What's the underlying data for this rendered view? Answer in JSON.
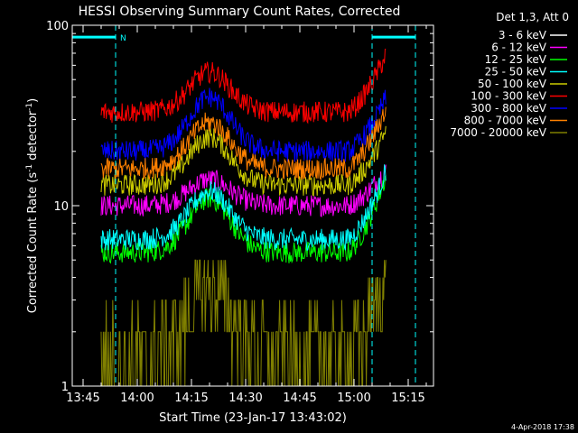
{
  "chart_data": {
    "type": "line",
    "title": "HESSI Observing Summary Count Rates, Corrected",
    "xlabel": "Start Time (23-Jan-17 13:43:02)",
    "ylabel_main": "Corrected Count Rate (s",
    "ylabel_sup1": "-1",
    "ylabel_mid": " detector",
    "ylabel_sup2": "-1",
    "ylabel_end": ")",
    "timestamp": "4-Apr-2018 17:38",
    "y_scale": "log",
    "ylim": [
      1,
      100
    ],
    "xlim": [
      "13:42",
      "15:22"
    ],
    "xticks": [
      "13:45",
      "14:00",
      "14:15",
      "14:30",
      "14:45",
      "15:00",
      "15:15"
    ],
    "yticks": [
      "1",
      "10",
      "100"
    ],
    "legend_header": "Det 1,3, Att 0",
    "legend_position": "outside-right",
    "night_marker_label": "N",
    "night_periods": [
      [
        "13:42",
        "13:54"
      ],
      [
        "15:05",
        "15:17"
      ]
    ],
    "data_start": "13:50",
    "data_end": "15:09",
    "series": [
      {
        "name": "3 - 6 keV",
        "color": "#000000",
        "baseline": 11,
        "peak": 18,
        "end": 20
      },
      {
        "name": "6 - 12 keV",
        "color": "#ff00ff",
        "baseline": 10,
        "peak": 14,
        "end": 16
      },
      {
        "name": "12 - 25 keV",
        "color": "#00ff00",
        "baseline": 5.5,
        "peak": 11,
        "end": 15
      },
      {
        "name": "25 - 50 keV",
        "color": "#00ffff",
        "baseline": 6.5,
        "peak": 12,
        "end": 16
      },
      {
        "name": "50 - 100 keV",
        "color": "#cccc00",
        "baseline": 13,
        "peak": 24,
        "end": 26
      },
      {
        "name": "100 - 300 keV",
        "color": "#ff0000",
        "baseline": 33,
        "peak": 55,
        "end": 70
      },
      {
        "name": "300 - 800 keV",
        "color": "#0000ff",
        "baseline": 20,
        "peak": 40,
        "end": 40
      },
      {
        "name": "800 - 7000 keV",
        "color": "#ff8000",
        "baseline": 16,
        "peak": 29,
        "end": 35
      },
      {
        "name": "7000 - 20000 keV",
        "color": "#808000",
        "baseline": 1.5,
        "peak": 3.5,
        "end": 4
      }
    ]
  }
}
